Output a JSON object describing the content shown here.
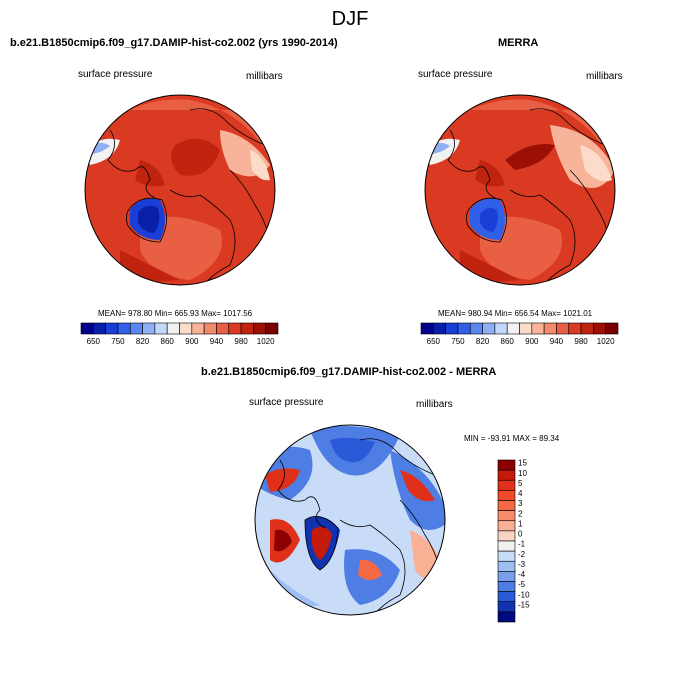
{
  "title": "DJF",
  "chart_data": [
    {
      "type": "heatmap",
      "projection": "polar stereographic, north pole",
      "title": "b.e21.B1850cmip6.f09_g17.DAMIP-hist-co2.002 (yrs 1990-2014)",
      "left_label": "surface pressure",
      "right_label": "millibars",
      "stats": "MEAN= 978.80  Min= 665.93  Max= 1017.56",
      "mean": 978.8,
      "min": 665.93,
      "max": 1017.56,
      "colorbar": {
        "orientation": "horizontal",
        "levels": [
          650,
          700,
          750,
          800,
          820,
          840,
          860,
          880,
          900,
          920,
          940,
          960,
          980,
          1000,
          1020
        ],
        "tick_labels": [
          "650",
          "750",
          "820",
          "860",
          "900",
          "940",
          "980",
          "1020"
        ],
        "colors": [
          "#00008c",
          "#0a1fa8",
          "#1a3fd6",
          "#3060e8",
          "#5a88f0",
          "#8fb0f5",
          "#c4d8fa",
          "#f2f2f2",
          "#fbdccb",
          "#f8b49a",
          "#f28a6c",
          "#e95f44",
          "#db3a22",
          "#c0240e",
          "#9c0f05",
          "#7a0000"
        ]
      }
    },
    {
      "type": "heatmap",
      "projection": "polar stereographic, north pole",
      "title": "MERRA",
      "left_label": "surface pressure",
      "right_label": "millibars",
      "stats": "MEAN= 980.94  Min= 656.54  Max= 1021.01",
      "mean": 980.94,
      "min": 656.54,
      "max": 1021.01,
      "colorbar": {
        "orientation": "horizontal",
        "levels": [
          650,
          700,
          750,
          800,
          820,
          840,
          860,
          880,
          900,
          920,
          940,
          960,
          980,
          1000,
          1020
        ],
        "tick_labels": [
          "650",
          "750",
          "820",
          "860",
          "900",
          "940",
          "980",
          "1020"
        ],
        "colors": [
          "#00008c",
          "#0a1fa8",
          "#1a3fd6",
          "#3060e8",
          "#5a88f0",
          "#8fb0f5",
          "#c4d8fa",
          "#f2f2f2",
          "#fbdccb",
          "#f8b49a",
          "#f28a6c",
          "#e95f44",
          "#db3a22",
          "#c0240e",
          "#9c0f05",
          "#7a0000"
        ]
      }
    },
    {
      "type": "heatmap",
      "projection": "polar stereographic, north pole",
      "title": "b.e21.B1850cmip6.f09_g17.DAMIP-hist-co2.002 - MERRA",
      "left_label": "surface pressure",
      "right_label": "millibars",
      "stats": "MIN = -93.91  MAX =  89.34",
      "min": -93.91,
      "max": 89.34,
      "colorbar": {
        "orientation": "vertical",
        "tick_labels_top_to_bottom": [
          "15",
          "10",
          "5",
          "4",
          "3",
          "2",
          "1",
          "0",
          "-1",
          "-2",
          "-3",
          "-4",
          "-5",
          "-10",
          "-15"
        ],
        "colors_top_to_bottom": [
          "#8c0000",
          "#c41a0a",
          "#e0301a",
          "#f04a2a",
          "#f56a45",
          "#f88c6a",
          "#fab095",
          "#fbd3c3",
          "#f2f2f2",
          "#c8dcf8",
          "#9fbff2",
          "#779fec",
          "#4e7ee4",
          "#2a5ad8",
          "#1233b0",
          "#000a80"
        ]
      }
    }
  ]
}
